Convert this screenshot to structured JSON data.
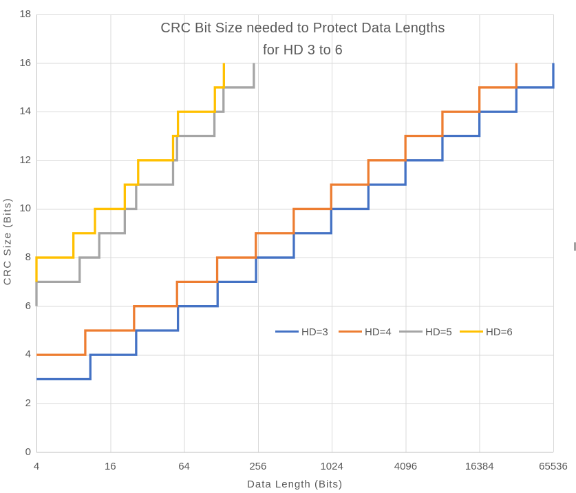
{
  "chart": {
    "title_line1": "CRC Bit Size needed to Protect Data Lengths",
    "title_line2": "for HD 3 to 6",
    "x_axis_title": "Data Length (Bits)",
    "y_axis_title": "CRC Size (Bits)"
  },
  "chart_data": {
    "type": "line",
    "subtype": "step-post",
    "title": "CRC Bit Size needed to Protect Data Lengths for HD 3 to 6",
    "xlabel": "Data Length (Bits)",
    "ylabel": "CRC Size (Bits)",
    "x_scale": "log2",
    "xlim": [
      4,
      65536
    ],
    "ylim": [
      0,
      18
    ],
    "x_ticks": [
      4,
      16,
      64,
      256,
      1024,
      4096,
      16384,
      65536
    ],
    "x_tick_labels": [
      "4",
      "16",
      "64",
      "256",
      "1024",
      "4096",
      "16384",
      "65536"
    ],
    "y_ticks": [
      0,
      2,
      4,
      6,
      8,
      10,
      12,
      14,
      16,
      18
    ],
    "y_tick_labels": [
      "0",
      "2",
      "4",
      "6",
      "8",
      "10",
      "12",
      "14",
      "16",
      "18"
    ],
    "grid": true,
    "legend_position": "inside-center",
    "colors": {
      "grid": "#D9D9D9",
      "axis": "#BFBFBF",
      "text": "#595959"
    },
    "series": [
      {
        "name": "HD=3",
        "color": "#4472C4",
        "points": [
          [
            4,
            3
          ],
          [
            11,
            4
          ],
          [
            26,
            5
          ],
          [
            57,
            6
          ],
          [
            120,
            7
          ],
          [
            247,
            8
          ],
          [
            502,
            9
          ],
          [
            1013,
            10
          ],
          [
            2036,
            11
          ],
          [
            4083,
            12
          ],
          [
            8178,
            13
          ],
          [
            16369,
            14
          ],
          [
            32752,
            15
          ],
          [
            65519,
            16
          ]
        ]
      },
      {
        "name": "HD=4",
        "color": "#ED7D31",
        "points": [
          [
            4,
            4
          ],
          [
            10,
            5
          ],
          [
            25,
            6
          ],
          [
            56,
            7
          ],
          [
            119,
            8
          ],
          [
            246,
            9
          ],
          [
            501,
            10
          ],
          [
            1012,
            11
          ],
          [
            2035,
            12
          ],
          [
            4082,
            13
          ],
          [
            8177,
            14
          ],
          [
            16368,
            15
          ],
          [
            32751,
            16
          ]
        ]
      },
      {
        "name": "HD=5",
        "color": "#A5A5A5",
        "points": [
          [
            4,
            6
          ],
          [
            4,
            7
          ],
          [
            9,
            8
          ],
          [
            13,
            9
          ],
          [
            21,
            10
          ],
          [
            26,
            11
          ],
          [
            52,
            12
          ],
          [
            56,
            13
          ],
          [
            113,
            14
          ],
          [
            134,
            15
          ],
          [
            237,
            16
          ]
        ]
      },
      {
        "name": "HD=6",
        "color": "#FFC000",
        "points": [
          [
            4,
            7
          ],
          [
            4,
            8
          ],
          [
            8,
            9
          ],
          [
            12,
            10
          ],
          [
            21,
            11
          ],
          [
            27,
            12
          ],
          [
            52,
            13
          ],
          [
            57,
            14
          ],
          [
            114,
            15
          ],
          [
            135,
            16
          ]
        ]
      }
    ]
  }
}
